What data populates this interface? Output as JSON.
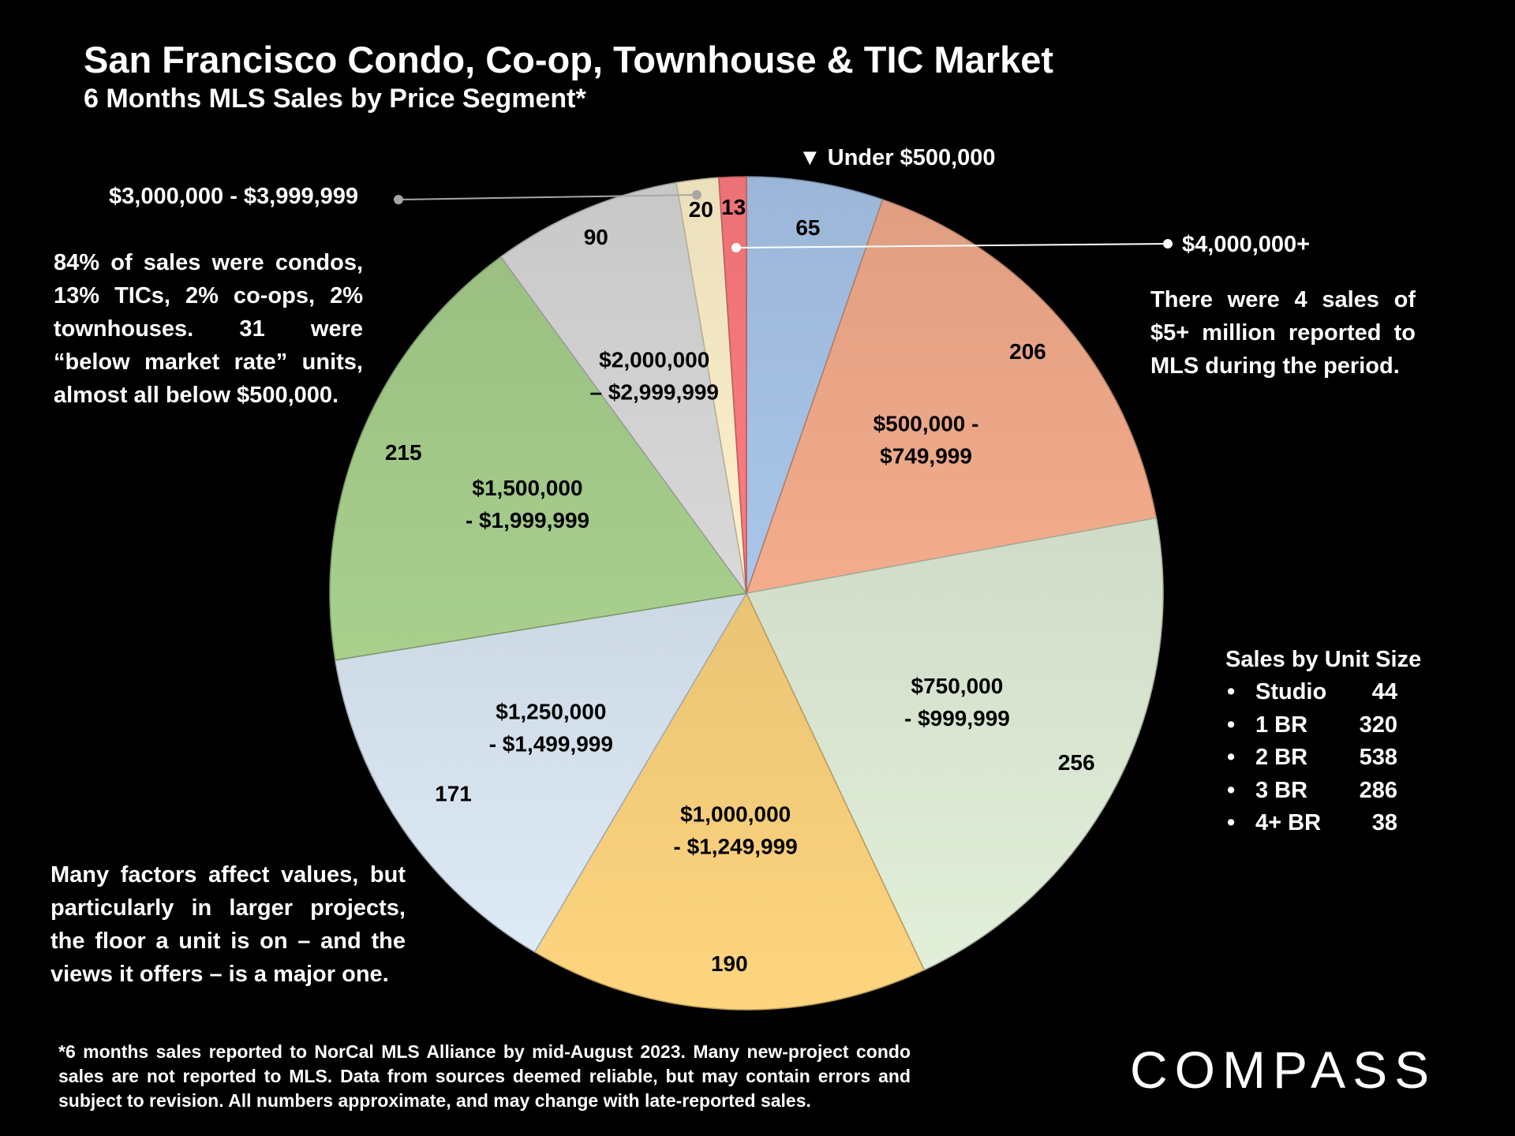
{
  "title": "San Francisco Condo, Co-op, Townhouse & TIC Market",
  "subtitle": "6 Months MLS Sales by Price Segment*",
  "chart_data": {
    "type": "pie",
    "slices": [
      {
        "label": "Under $500,000",
        "value": 65,
        "color": "#a9c6ea"
      },
      {
        "label": "$500,000 - $749,999",
        "value": 206,
        "color": "#f4ac8c"
      },
      {
        "label": "$750,000 - $999,999",
        "value": 256,
        "color": "#e2efd9"
      },
      {
        "label": "$1,000,000 - $1,249,999",
        "value": 190,
        "color": "#fed57f"
      },
      {
        "label": "$1,250,000 - $1,499,999",
        "value": 171,
        "color": "#deebf7"
      },
      {
        "label": "$1,500,000 - $1,999,999",
        "value": 215,
        "color": "#a8d08d"
      },
      {
        "label": "$2,000,000 – $2,999,999",
        "value": 90,
        "color": "#d9d9d9"
      },
      {
        "label": "$3,000,000 - $3,999,999",
        "value": 20,
        "color": "#fff2cc"
      },
      {
        "label": "$4,000,000+",
        "value": 13,
        "color": "#ff7c80"
      }
    ],
    "inner_labels": {
      "seg_500_749": [
        "$500,000 -",
        "$749,999"
      ],
      "seg_750_999": [
        "$750,000",
        "- $999,999"
      ],
      "seg_1000_1249": [
        "$1,000,000",
        "- $1,249,999"
      ],
      "seg_1250_1499": [
        "$1,250,000",
        "- $1,499,999"
      ],
      "seg_1500_1999": [
        "$1,500,000",
        "- $1,999,999"
      ],
      "seg_2000_2999": [
        "$2,000,000",
        "– $2,999,999"
      ]
    }
  },
  "callouts": {
    "under_500k": "▼ Under $500,000",
    "over_4m": "$4,000,000+",
    "seg_3m": "$3,000,000 - $3,999,999"
  },
  "notes": {
    "property_types": "84% of sales were condos, 13% TICs, 2% co-ops, 2% townhouses. 31 were “below market rate” units, almost all below $500,000.",
    "factors": "Many factors affect values, but particularly in larger projects, the floor a unit is on – and the views it offers – is a major one.",
    "five_million": "There were 4 sales of $5+ million reported to MLS during the period."
  },
  "unit_size": {
    "title": "Sales by Unit Size",
    "rows": [
      {
        "label": "Studio",
        "count": "44"
      },
      {
        "label": "1 BR",
        "count": "320"
      },
      {
        "label": "2 BR",
        "count": "538"
      },
      {
        "label": "3 BR",
        "count": "286"
      },
      {
        "label": "4+ BR",
        "count": "38"
      }
    ]
  },
  "footnote": "*6 months sales reported to NorCal MLS Alliance by mid-August 2023. Many new-project condo sales are not reported to MLS. Data from sources deemed reliable, but may contain errors and subject to revision. All numbers approximate, and may change with late-reported sales.",
  "logo": "COMPASS"
}
